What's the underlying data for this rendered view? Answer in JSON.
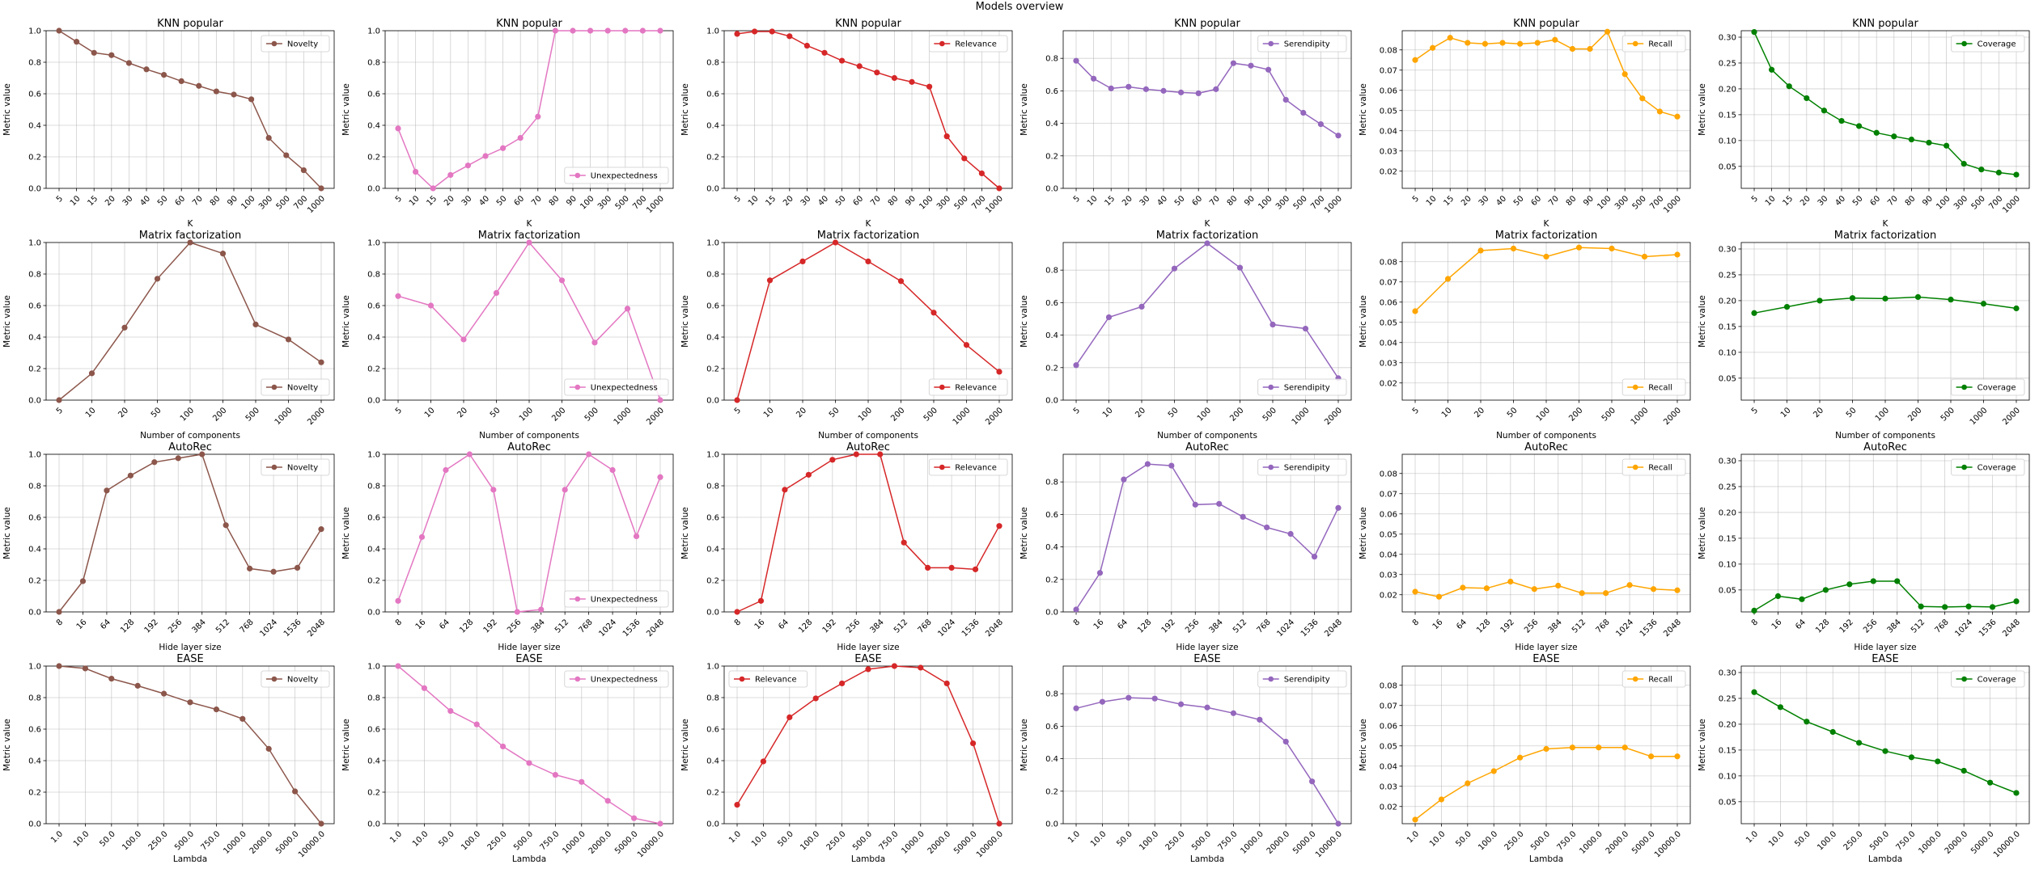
{
  "figure_title": "Models overview",
  "common": {
    "ylabel": "Metric value"
  },
  "metrics": [
    {
      "name": "Novelty",
      "color": "#8c564b"
    },
    {
      "name": "Unexpectedness",
      "color": "#e377c2"
    },
    {
      "name": "Relevance",
      "color": "#d62728"
    },
    {
      "name": "Serendipity",
      "color": "#9467bd"
    },
    {
      "name": "Recall",
      "color": "#ffa500"
    },
    {
      "name": "Coverage",
      "color": "#008000"
    }
  ],
  "chart_data": [
    {
      "type": "line",
      "title": "KNN popular",
      "xlabel": "K",
      "categories": [
        "5",
        "10",
        "15",
        "20",
        "30",
        "40",
        "50",
        "60",
        "70",
        "80",
        "90",
        "100",
        "300",
        "500",
        "700",
        "1000"
      ],
      "legend_positions": [
        "upper-right",
        "lower-right",
        "upper-right",
        "upper-right",
        "upper-right",
        "upper-right"
      ],
      "series": [
        {
          "name": "Novelty",
          "values": [
            1.0,
            0.93,
            0.86,
            0.845,
            0.795,
            0.755,
            0.72,
            0.68,
            0.65,
            0.615,
            0.595,
            0.565,
            0.32,
            0.21,
            0.115,
            0.0
          ]
        },
        {
          "name": "Unexpectedness",
          "values": [
            0.38,
            0.105,
            0.0,
            0.085,
            0.145,
            0.205,
            0.255,
            0.32,
            0.455,
            1.0,
            1.0,
            1.0,
            1.0,
            1.0,
            1.0,
            1.0
          ]
        },
        {
          "name": "Relevance",
          "values": [
            0.98,
            0.995,
            0.995,
            0.965,
            0.905,
            0.86,
            0.81,
            0.775,
            0.735,
            0.7,
            0.675,
            0.645,
            0.33,
            0.19,
            0.095,
            0.0
          ]
        },
        {
          "name": "Serendipity",
          "values": [
            0.785,
            0.675,
            0.615,
            0.625,
            0.61,
            0.6,
            0.59,
            0.585,
            0.61,
            0.77,
            0.755,
            0.73,
            0.545,
            0.465,
            0.395,
            0.325
          ]
        },
        {
          "name": "Recall",
          "values": [
            0.075,
            0.081,
            0.086,
            0.0835,
            0.083,
            0.0835,
            0.083,
            0.0835,
            0.085,
            0.0805,
            0.0805,
            0.089,
            0.068,
            0.056,
            0.0495,
            0.047
          ]
        },
        {
          "name": "Coverage",
          "values": [
            0.31,
            0.237,
            0.205,
            0.182,
            0.158,
            0.138,
            0.128,
            0.115,
            0.108,
            0.102,
            0.096,
            0.09,
            0.055,
            0.044,
            0.038,
            0.034
          ]
        }
      ]
    },
    {
      "type": "line",
      "title": "Matrix factorization",
      "xlabel": "Number of components",
      "categories": [
        "5",
        "10",
        "20",
        "50",
        "100",
        "200",
        "500",
        "1000",
        "2000"
      ],
      "legend_positions": [
        "lower-right",
        "lower-right",
        "lower-right",
        "lower-right",
        "lower-right",
        "lower-right"
      ],
      "series": [
        {
          "name": "Novelty",
          "values": [
            0.0,
            0.17,
            0.46,
            0.77,
            1.0,
            0.93,
            0.48,
            0.385,
            0.24
          ]
        },
        {
          "name": "Unexpectedness",
          "values": [
            0.66,
            0.6,
            0.385,
            0.68,
            1.0,
            0.76,
            0.365,
            0.58,
            0.0
          ]
        },
        {
          "name": "Relevance",
          "values": [
            0.0,
            0.76,
            0.88,
            1.0,
            0.88,
            0.755,
            0.555,
            0.35,
            0.18
          ]
        },
        {
          "name": "Serendipity",
          "values": [
            0.215,
            0.51,
            0.575,
            0.81,
            0.965,
            0.815,
            0.465,
            0.44,
            0.135
          ]
        },
        {
          "name": "Recall",
          "values": [
            0.0555,
            0.0715,
            0.0855,
            0.0865,
            0.0825,
            0.087,
            0.0865,
            0.0825,
            0.0835
          ]
        },
        {
          "name": "Coverage",
          "values": [
            0.176,
            0.188,
            0.2,
            0.205,
            0.204,
            0.207,
            0.202,
            0.194,
            0.185
          ]
        }
      ]
    },
    {
      "type": "line",
      "title": "AutoRec",
      "xlabel": "Hide layer size",
      "categories": [
        "8",
        "16",
        "64",
        "128",
        "192",
        "256",
        "384",
        "512",
        "768",
        "1024",
        "1536",
        "2048"
      ],
      "legend_positions": [
        "upper-right",
        "lower-right",
        "upper-right",
        "upper-right",
        "upper-right",
        "upper-right"
      ],
      "series": [
        {
          "name": "Novelty",
          "values": [
            0.0,
            0.195,
            0.77,
            0.865,
            0.95,
            0.975,
            1.0,
            0.55,
            0.275,
            0.255,
            0.28,
            0.525
          ]
        },
        {
          "name": "Unexpectedness",
          "values": [
            0.07,
            0.475,
            0.9,
            1.0,
            0.775,
            0.0,
            0.015,
            0.775,
            1.0,
            0.9,
            0.48,
            0.855
          ]
        },
        {
          "name": "Relevance",
          "values": [
            0.0,
            0.07,
            0.775,
            0.87,
            0.965,
            1.0,
            1.0,
            0.44,
            0.28,
            0.28,
            0.27,
            0.545
          ]
        },
        {
          "name": "Serendipity",
          "values": [
            0.015,
            0.24,
            0.815,
            0.91,
            0.9,
            0.66,
            0.665,
            0.585,
            0.52,
            0.48,
            0.34,
            0.64
          ]
        },
        {
          "name": "Recall",
          "values": [
            0.0215,
            0.019,
            0.0235,
            0.0232,
            0.0265,
            0.0228,
            0.0245,
            0.0208,
            0.0208,
            0.0248,
            0.0228,
            0.0222
          ]
        },
        {
          "name": "Coverage",
          "values": [
            0.01,
            0.038,
            0.032,
            0.05,
            0.061,
            0.067,
            0.067,
            0.018,
            0.017,
            0.018,
            0.017,
            0.028
          ]
        }
      ]
    },
    {
      "type": "line",
      "title": "EASE",
      "xlabel": "Lambda",
      "categories": [
        "1.0",
        "10.0",
        "50.0",
        "100.0",
        "250.0",
        "500.0",
        "750.0",
        "1000.0",
        "2000.0",
        "5000.0",
        "10000.0"
      ],
      "legend_positions": [
        "upper-right",
        "upper-right",
        "upper-left",
        "upper-right",
        "upper-right",
        "upper-right"
      ],
      "series": [
        {
          "name": "Novelty",
          "values": [
            1.0,
            0.985,
            0.92,
            0.875,
            0.825,
            0.77,
            0.725,
            0.665,
            0.475,
            0.205,
            0.0
          ]
        },
        {
          "name": "Unexpectedness",
          "values": [
            1.0,
            0.86,
            0.715,
            0.63,
            0.49,
            0.385,
            0.31,
            0.265,
            0.145,
            0.035,
            0.0
          ]
        },
        {
          "name": "Relevance",
          "values": [
            0.12,
            0.395,
            0.675,
            0.795,
            0.89,
            0.98,
            1.0,
            0.99,
            0.89,
            0.51,
            0.0
          ]
        },
        {
          "name": "Serendipity",
          "values": [
            0.71,
            0.75,
            0.775,
            0.77,
            0.735,
            0.715,
            0.68,
            0.64,
            0.505,
            0.26,
            0.0
          ]
        },
        {
          "name": "Recall",
          "values": [
            0.0135,
            0.0235,
            0.0315,
            0.0375,
            0.0442,
            0.0485,
            0.0492,
            0.0492,
            0.0492,
            0.0448,
            0.0448
          ]
        },
        {
          "name": "Coverage",
          "values": [
            0.262,
            0.233,
            0.205,
            0.185,
            0.164,
            0.148,
            0.136,
            0.128,
            0.11,
            0.087,
            0.067
          ]
        }
      ]
    }
  ],
  "y_axes": [
    {
      "metric": "Novelty",
      "ylim": [
        0,
        1.0
      ],
      "ticks": [
        "0.0",
        "0.2",
        "0.4",
        "0.6",
        "0.8",
        "1.0"
      ]
    },
    {
      "metric": "Unexpectedness",
      "ylim": [
        0,
        1.0
      ],
      "ticks": [
        "0.0",
        "0.2",
        "0.4",
        "0.6",
        "0.8",
        "1.0"
      ]
    },
    {
      "metric": "Relevance",
      "ylim": [
        0,
        1.0
      ],
      "ticks": [
        "0.0",
        "0.2",
        "0.4",
        "0.6",
        "0.8",
        "1.0"
      ]
    },
    {
      "metric": "Serendipity",
      "ylim": [
        0,
        0.97
      ],
      "ticks": [
        "0.0",
        "0.2",
        "0.4",
        "0.6",
        "0.8"
      ]
    },
    {
      "metric": "Recall",
      "ylim": [
        0.0115,
        0.0895
      ],
      "ticks": [
        "0.02",
        "0.03",
        "0.04",
        "0.05",
        "0.06",
        "0.07",
        "0.08"
      ]
    },
    {
      "metric": "Coverage",
      "ylim": [
        0.0075,
        0.3125
      ],
      "ticks": [
        "0.05",
        "0.10",
        "0.15",
        "0.20",
        "0.25",
        "0.30"
      ]
    }
  ],
  "grid": true
}
